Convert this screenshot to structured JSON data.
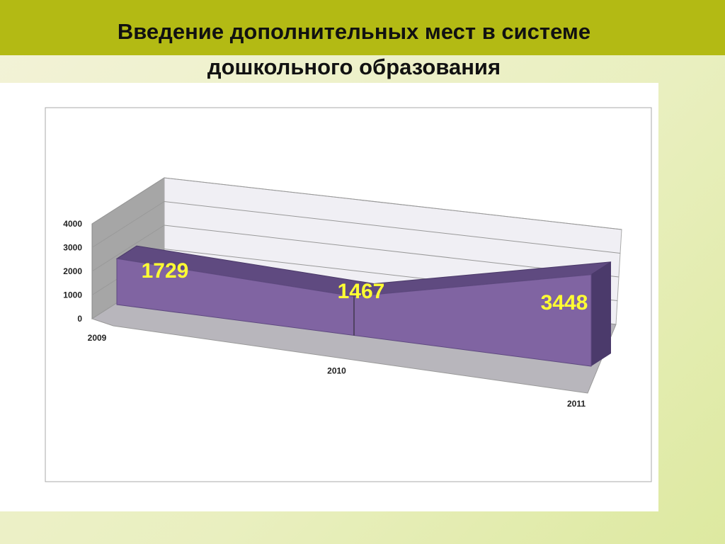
{
  "chart_data": {
    "type": "line",
    "title": "Введение дополнительных мест в системе дошкольного образования",
    "categories": [
      "2009",
      "2010",
      "2011"
    ],
    "values": [
      1729,
      1467,
      3448
    ],
    "color": "#8064a2",
    "ylim": [
      0,
      4000
    ],
    "yticks": [
      0,
      1000,
      2000,
      3000,
      4000
    ],
    "grid": true
  }
}
